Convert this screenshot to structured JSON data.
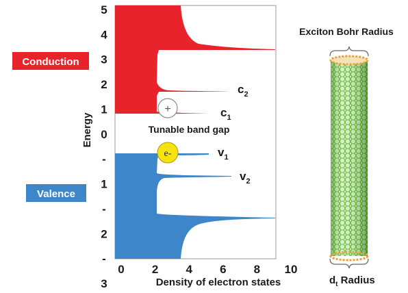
{
  "bands": {
    "conduction_label": "Conduction",
    "valence_label": "Valence",
    "colors": {
      "conduction": "#e8232b",
      "valence": "#3c86c9"
    }
  },
  "y_axis": {
    "label": "Energy",
    "ticks": [
      "5",
      "4",
      "3",
      "2",
      "1",
      "0",
      "-",
      "1",
      "-",
      "2",
      "-",
      "3"
    ]
  },
  "x_axis": {
    "label": "Density of electron states",
    "ticks": [
      "0",
      "2",
      "4",
      "6",
      "8",
      "10"
    ]
  },
  "annotations": {
    "band_gap": "Tunable band gap",
    "c2": "c",
    "c2_sub": "2",
    "c1": "c",
    "c1_sub": "1",
    "v1": "v",
    "v1_sub": "1",
    "v2": "v",
    "v2_sub": "2",
    "hole_symbol": "+",
    "electron_symbol": "e-"
  },
  "nanotube": {
    "title": "Exciton Bohr Radius",
    "radius_label_prefix": "d",
    "radius_label_sub": "t",
    "radius_label_suffix": " Radius",
    "colors": {
      "tube": "#5cb82e",
      "rim": "#e8a23c"
    }
  }
}
